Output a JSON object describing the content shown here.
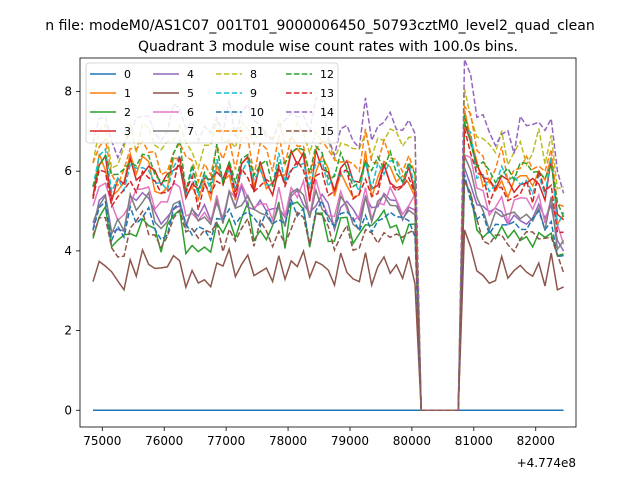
{
  "chart_data": {
    "type": "line",
    "suptitle": "n file: modeM0/AS1C07_001T01_9000006450_50793cztM0_level2_quad_clean",
    "title": "Quadrant 3 module wise count rates with 100.0s bins.",
    "xlabel": "",
    "ylabel": "",
    "x_offset_label": "+4.774e8",
    "xlim": [
      74640,
      82650
    ],
    "ylim": [
      -0.42,
      8.84
    ],
    "xticks": [
      75000,
      76000,
      77000,
      78000,
      79000,
      80000,
      81000,
      82000
    ],
    "xtick_labels": [
      "75000",
      "76000",
      "77000",
      "78000",
      "79000",
      "80000",
      "81000",
      "82000"
    ],
    "yticks": [
      0,
      2,
      4,
      6,
      8
    ],
    "ytick_labels": [
      "0",
      "2",
      "4",
      "6",
      "8"
    ],
    "gap": [
      80100,
      80800
    ],
    "x_start": 74850,
    "x_end": 82450,
    "x_step": 100,
    "legend_position": "upper-left",
    "series": [
      {
        "name": "0",
        "style": "solid",
        "color": "#1f77b4",
        "level": 0.0,
        "noise": 0.0
      },
      {
        "name": "1",
        "style": "solid",
        "color": "#ff7f0e",
        "level": 5.85,
        "noise": 0.45
      },
      {
        "name": "2",
        "style": "solid",
        "color": "#2ca02c",
        "level": 4.55,
        "noise": 0.45
      },
      {
        "name": "3",
        "style": "solid",
        "color": "#d62728",
        "level": 5.9,
        "noise": 0.4
      },
      {
        "name": "4",
        "style": "solid",
        "color": "#9467bd",
        "level": 5.05,
        "noise": 0.35
      },
      {
        "name": "5",
        "style": "solid",
        "color": "#8c564b",
        "level": 3.55,
        "noise": 0.35
      },
      {
        "name": "6",
        "style": "solid",
        "color": "#e377c2",
        "level": 5.25,
        "noise": 0.4
      },
      {
        "name": "7",
        "style": "solid",
        "color": "#7f7f7f",
        "level": 5.0,
        "noise": 0.35
      },
      {
        "name": "8",
        "style": "dashed",
        "color": "#bcbd22",
        "level": 6.7,
        "noise": 0.4
      },
      {
        "name": "9",
        "style": "dashed",
        "color": "#17becf",
        "level": 5.95,
        "noise": 0.4
      },
      {
        "name": "10",
        "style": "dashed",
        "color": "#1f77b4",
        "level": 4.75,
        "noise": 0.35
      },
      {
        "name": "11",
        "style": "dashed",
        "color": "#ff7f0e",
        "level": 6.35,
        "noise": 0.4
      },
      {
        "name": "12",
        "style": "dashed",
        "color": "#2ca02c",
        "level": 6.1,
        "noise": 0.4
      },
      {
        "name": "13",
        "style": "dashed",
        "color": "#d62728",
        "level": 5.7,
        "noise": 0.4
      },
      {
        "name": "14",
        "style": "dashed",
        "color": "#9467bd",
        "level": 7.1,
        "noise": 0.45
      },
      {
        "name": "15",
        "style": "dashed",
        "color": "#8c564b",
        "level": 4.45,
        "noise": 0.35
      }
    ]
  }
}
